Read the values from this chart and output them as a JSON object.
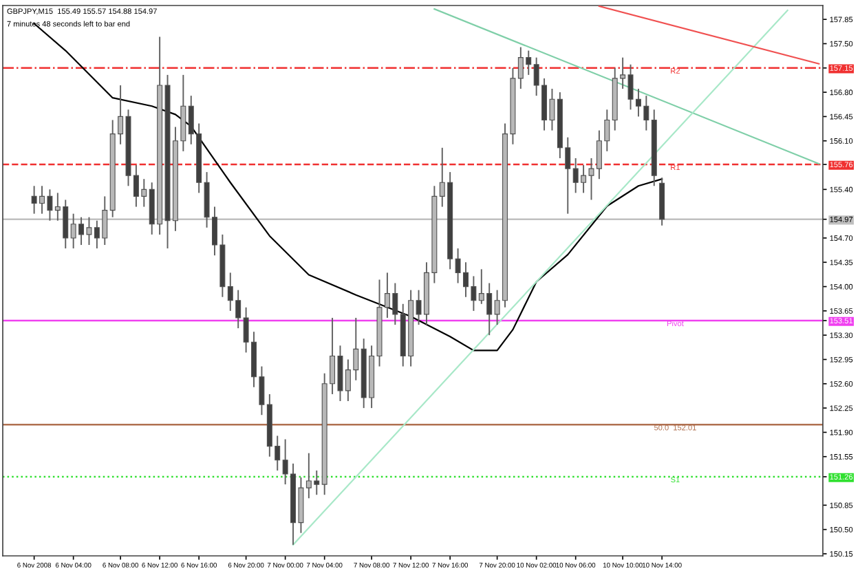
{
  "chart_data": {
    "type": "candlestick",
    "title": "GBPJPY,M15  155.49 155.57 154.88 154.97",
    "subtitle": "7 minutes 48 seconds left to bar end",
    "categories": [
      "6 Nov 2008",
      null,
      null,
      null,
      null,
      "6 Nov 04:00",
      null,
      null,
      null,
      null,
      null,
      "6 Nov 08:00",
      null,
      null,
      null,
      null,
      "6 Nov 12:00",
      null,
      null,
      null,
      null,
      "6 Nov 16:00",
      null,
      null,
      null,
      null,
      null,
      "6 Nov 20:00",
      null,
      null,
      null,
      null,
      "7 Nov 00:00",
      null,
      null,
      null,
      null,
      "7 Nov 04:00",
      null,
      null,
      null,
      null,
      null,
      "7 Nov 08:00",
      null,
      null,
      null,
      null,
      "7 Nov 12:00",
      null,
      null,
      null,
      null,
      "7 Nov 16:00",
      null,
      null,
      null,
      null,
      null,
      "7 Nov 20:00",
      null,
      null,
      null,
      null,
      "10 Nov 02:00",
      null,
      null,
      null,
      null,
      "10 Nov 06:00",
      null,
      null,
      null,
      null,
      null,
      "10 Nov 10:00",
      null,
      null,
      null,
      null,
      "10 Nov 14:00",
      null,
      null,
      null,
      null,
      null,
      null,
      null,
      null,
      null,
      null,
      null,
      null,
      null,
      null,
      null,
      null,
      null,
      null,
      null,
      null
    ],
    "ohlc": [
      [
        155.3,
        155.45,
        155.05,
        155.2
      ],
      [
        155.2,
        155.45,
        155.05,
        155.3
      ],
      [
        155.3,
        155.4,
        154.95,
        155.1
      ],
      [
        155.1,
        155.35,
        154.95,
        155.15
      ],
      [
        155.15,
        155.25,
        154.55,
        154.7
      ],
      [
        154.7,
        155.05,
        154.55,
        154.9
      ],
      [
        154.9,
        155.0,
        154.6,
        154.75
      ],
      [
        154.75,
        155.0,
        154.6,
        154.85
      ],
      [
        154.85,
        154.95,
        154.55,
        154.7
      ],
      [
        154.7,
        155.3,
        154.6,
        155.1
      ],
      [
        155.1,
        156.4,
        155.0,
        156.2
      ],
      [
        156.2,
        156.9,
        156.05,
        156.45
      ],
      [
        156.45,
        156.55,
        155.45,
        155.6
      ],
      [
        155.6,
        155.75,
        155.15,
        155.3
      ],
      [
        155.3,
        155.55,
        155.15,
        155.4
      ],
      [
        155.4,
        155.5,
        154.75,
        154.9
      ],
      [
        154.9,
        157.6,
        154.75,
        156.9
      ],
      [
        156.9,
        157.05,
        154.55,
        154.95
      ],
      [
        154.95,
        156.3,
        154.8,
        156.1
      ],
      [
        156.1,
        157.05,
        155.95,
        156.6
      ],
      [
        156.6,
        156.75,
        156.05,
        156.2
      ],
      [
        156.2,
        156.35,
        155.35,
        155.5
      ],
      [
        155.5,
        155.65,
        154.85,
        155.0
      ],
      [
        155.0,
        155.15,
        154.45,
        154.6
      ],
      [
        154.6,
        154.75,
        153.85,
        154.0
      ],
      [
        154.0,
        154.2,
        153.65,
        153.8
      ],
      [
        153.8,
        153.95,
        153.4,
        153.55
      ],
      [
        153.55,
        153.7,
        153.05,
        153.2
      ],
      [
        153.2,
        153.35,
        152.55,
        152.7
      ],
      [
        152.7,
        152.85,
        152.15,
        152.3
      ],
      [
        152.3,
        152.45,
        151.55,
        151.7
      ],
      [
        151.7,
        151.85,
        151.35,
        151.5
      ],
      [
        151.5,
        151.8,
        151.15,
        151.3
      ],
      [
        151.3,
        151.45,
        150.28,
        150.6
      ],
      [
        150.6,
        151.25,
        150.45,
        151.1
      ],
      [
        151.1,
        151.6,
        150.95,
        151.2
      ],
      [
        151.2,
        151.35,
        151.0,
        151.15
      ],
      [
        151.15,
        152.75,
        151.0,
        152.6
      ],
      [
        152.6,
        153.55,
        152.45,
        153.0
      ],
      [
        153.0,
        153.15,
        152.35,
        152.5
      ],
      [
        152.5,
        152.95,
        152.35,
        152.8
      ],
      [
        152.8,
        153.55,
        152.65,
        153.1
      ],
      [
        153.1,
        153.25,
        152.25,
        152.4
      ],
      [
        152.4,
        153.15,
        152.25,
        153.0
      ],
      [
        153.0,
        154.1,
        152.85,
        153.7
      ],
      [
        153.7,
        154.2,
        153.55,
        153.9
      ],
      [
        153.9,
        154.05,
        153.45,
        153.6
      ],
      [
        153.6,
        153.75,
        152.85,
        153.0
      ],
      [
        153.0,
        153.95,
        152.85,
        153.8
      ],
      [
        153.8,
        153.95,
        153.45,
        153.6
      ],
      [
        153.6,
        154.35,
        153.45,
        154.2
      ],
      [
        154.2,
        155.45,
        154.05,
        155.3
      ],
      [
        155.3,
        156.0,
        155.15,
        155.5
      ],
      [
        155.5,
        155.65,
        154.25,
        154.4
      ],
      [
        154.4,
        154.55,
        154.05,
        154.2
      ],
      [
        154.2,
        154.35,
        153.85,
        154.0
      ],
      [
        154.0,
        154.15,
        153.65,
        153.8
      ],
      [
        153.8,
        154.25,
        153.75,
        153.9
      ],
      [
        153.9,
        154.05,
        153.3,
        153.6
      ],
      [
        153.6,
        153.95,
        153.45,
        153.8
      ],
      [
        153.8,
        156.35,
        153.7,
        156.2
      ],
      [
        156.2,
        157.15,
        156.05,
        157.0
      ],
      [
        157.0,
        157.45,
        156.85,
        157.3
      ],
      [
        157.3,
        157.4,
        157.05,
        157.2
      ],
      [
        157.2,
        157.3,
        156.75,
        156.9
      ],
      [
        156.9,
        157.0,
        156.25,
        156.4
      ],
      [
        156.4,
        156.85,
        156.25,
        156.7
      ],
      [
        156.7,
        156.8,
        155.85,
        156.0
      ],
      [
        156.0,
        156.15,
        155.05,
        155.7
      ],
      [
        155.7,
        155.85,
        155.35,
        155.5
      ],
      [
        155.5,
        155.75,
        155.35,
        155.6
      ],
      [
        155.6,
        155.85,
        155.25,
        155.7
      ],
      [
        155.7,
        156.25,
        155.55,
        156.1
      ],
      [
        156.1,
        156.55,
        155.95,
        156.4
      ],
      [
        156.4,
        157.15,
        156.25,
        157.0
      ],
      [
        157.0,
        157.3,
        156.85,
        157.05
      ],
      [
        157.05,
        157.2,
        156.55,
        156.7
      ],
      [
        156.7,
        156.85,
        156.45,
        156.6
      ],
      [
        156.6,
        156.75,
        156.25,
        156.4
      ],
      [
        156.4,
        156.55,
        155.45,
        155.6
      ],
      [
        155.49,
        155.57,
        154.88,
        154.97
      ],
      null,
      null,
      null,
      null,
      null,
      null,
      null,
      null,
      null,
      null,
      null,
      null,
      null,
      null,
      null,
      null,
      null,
      null,
      null,
      null
    ],
    "series": [
      {
        "type": "line",
        "color": "#000000",
        "values": [
          157.79,
          null,
          null,
          null,
          157.4,
          null,
          null,
          null,
          null,
          null,
          156.72,
          null,
          null,
          null,
          null,
          156.6,
          null,
          null,
          156.48,
          null,
          156.31,
          null,
          null,
          null,
          null,
          155.5,
          null,
          null,
          null,
          null,
          154.73,
          null,
          null,
          null,
          null,
          154.17,
          null,
          null,
          null,
          null,
          null,
          153.88,
          null,
          null,
          null,
          null,
          null,
          null,
          153.57,
          null,
          null,
          null,
          null,
          153.28,
          null,
          null,
          153.08,
          null,
          null,
          153.08,
          null,
          153.38,
          null,
          null,
          154.07,
          null,
          null,
          null,
          154.46,
          null,
          null,
          null,
          null,
          155.16,
          null,
          null,
          null,
          155.45,
          null,
          null,
          155.55,
          null,
          null,
          null,
          null,
          null,
          null,
          null,
          null,
          null,
          null,
          null,
          null,
          null,
          null,
          null,
          null,
          null,
          null,
          null,
          null
        ]
      },
      {
        "type": "line",
        "color": "#7fcfa8",
        "values": [
          null,
          null,
          null,
          null,
          null,
          null,
          null,
          null,
          null,
          null,
          null,
          null,
          null,
          null,
          null,
          null,
          null,
          null,
          null,
          null,
          null,
          null,
          null,
          null,
          null,
          null,
          null,
          null,
          null,
          null,
          null,
          null,
          null,
          null,
          null,
          null,
          null,
          null,
          null,
          null,
          null,
          null,
          null,
          null,
          null,
          null,
          null,
          null,
          null,
          null,
          null,
          158.0,
          null,
          null,
          null,
          null,
          null,
          null,
          null,
          null,
          null,
          null,
          null,
          null,
          null,
          null,
          null,
          null,
          null,
          null,
          null,
          null,
          null,
          null,
          null,
          null,
          null,
          null,
          null,
          null,
          null,
          null,
          null,
          null,
          null,
          null,
          null,
          null,
          null,
          null,
          null,
          null,
          null,
          null,
          null,
          null,
          null,
          null,
          null,
          null,
          155.77
        ]
      },
      {
        "type": "line",
        "color": "#a8e8c8",
        "values": [
          null,
          null,
          null,
          null,
          null,
          null,
          null,
          null,
          null,
          null,
          null,
          null,
          null,
          null,
          null,
          null,
          null,
          null,
          null,
          null,
          null,
          null,
          null,
          null,
          null,
          null,
          null,
          null,
          null,
          null,
          null,
          null,
          null,
          150.28,
          null,
          null,
          null,
          null,
          null,
          null,
          null,
          null,
          null,
          null,
          null,
          null,
          null,
          null,
          null,
          null,
          null,
          null,
          null,
          null,
          null,
          null,
          null,
          null,
          null,
          null,
          null,
          null,
          null,
          null,
          null,
          null,
          null,
          null,
          null,
          null,
          null,
          null,
          null,
          null,
          null,
          null,
          null,
          null,
          null,
          null,
          null,
          null,
          null,
          null,
          null,
          null,
          null,
          null,
          null,
          null,
          null,
          null,
          null,
          null,
          null,
          null,
          157.98,
          null,
          null,
          null,
          null
        ]
      },
      {
        "type": "line",
        "color": "#f05050",
        "values": [
          null,
          null,
          null,
          null,
          null,
          null,
          null,
          null,
          null,
          null,
          null,
          null,
          null,
          null,
          null,
          null,
          null,
          null,
          null,
          null,
          null,
          null,
          null,
          null,
          null,
          null,
          null,
          null,
          null,
          null,
          null,
          null,
          null,
          null,
          null,
          null,
          null,
          null,
          null,
          null,
          null,
          null,
          null,
          null,
          null,
          null,
          null,
          null,
          null,
          null,
          null,
          null,
          null,
          null,
          null,
          null,
          null,
          null,
          null,
          null,
          null,
          null,
          null,
          null,
          null,
          null,
          null,
          null,
          null,
          null,
          null,
          null,
          158.04,
          null,
          null,
          null,
          null,
          null,
          null,
          null,
          null,
          null,
          null,
          null,
          null,
          null,
          null,
          null,
          null,
          null,
          null,
          null,
          null,
          null,
          null,
          null,
          null,
          null,
          null,
          null,
          157.21
        ]
      }
    ],
    "ylim": [
      150.12,
      158.05
    ],
    "yticks": [
      {
        "value": 157.85,
        "label": "157.85"
      },
      {
        "value": 157.5,
        "label": "157.50"
      },
      {
        "value": 157.15,
        "label": "157.15"
      },
      {
        "value": 156.8,
        "label": "156.80"
      },
      {
        "value": 156.45,
        "label": "156.45"
      },
      {
        "value": 156.1,
        "label": "156.10"
      },
      {
        "value": 155.76,
        "label": "155.76"
      },
      {
        "value": 155.4,
        "label": "155.40"
      },
      {
        "value": 154.97,
        "label": "154.97"
      },
      {
        "value": 154.7,
        "label": "154.70"
      },
      {
        "value": 154.35,
        "label": "154.35"
      },
      {
        "value": 154.0,
        "label": "154.00"
      },
      {
        "value": 153.65,
        "label": "153.65"
      },
      {
        "value": 153.51,
        "label": "153.51"
      },
      {
        "value": 153.3,
        "label": "153.30"
      },
      {
        "value": 152.95,
        "label": "152.95"
      },
      {
        "value": 152.6,
        "label": "152.60"
      },
      {
        "value": 152.25,
        "label": "152.25"
      },
      {
        "value": 151.9,
        "label": "151.90"
      },
      {
        "value": 151.55,
        "label": "151.55"
      },
      {
        "value": 151.26,
        "label": "151.26"
      },
      {
        "value": 150.85,
        "label": "150.85"
      },
      {
        "value": 150.5,
        "label": "150.50"
      },
      {
        "value": 150.15,
        "label": "150.15"
      }
    ],
    "ref_lines": [
      {
        "axis": "y",
        "value": 157.15,
        "color": "#f03030",
        "line_style": "dashdot",
        "label": "R2"
      },
      {
        "axis": "y",
        "value": 155.76,
        "color": "#f03030",
        "line_style": "dashed",
        "label": "R1"
      },
      {
        "axis": "y",
        "value": 154.97,
        "color": "#c0c0c0",
        "line_style": "solid"
      },
      {
        "axis": "y",
        "value": 153.51,
        "color": "#f040f0",
        "line_style": "solid",
        "label": "Pivot"
      },
      {
        "axis": "y",
        "value": 152.01,
        "color": "#b07050",
        "line_style": "solid",
        "label": "50.0  152.01"
      },
      {
        "axis": "y",
        "value": 151.26,
        "color": "#30e030",
        "line_style": "dotted",
        "label": "S1"
      }
    ],
    "grid": false,
    "legend": false
  }
}
